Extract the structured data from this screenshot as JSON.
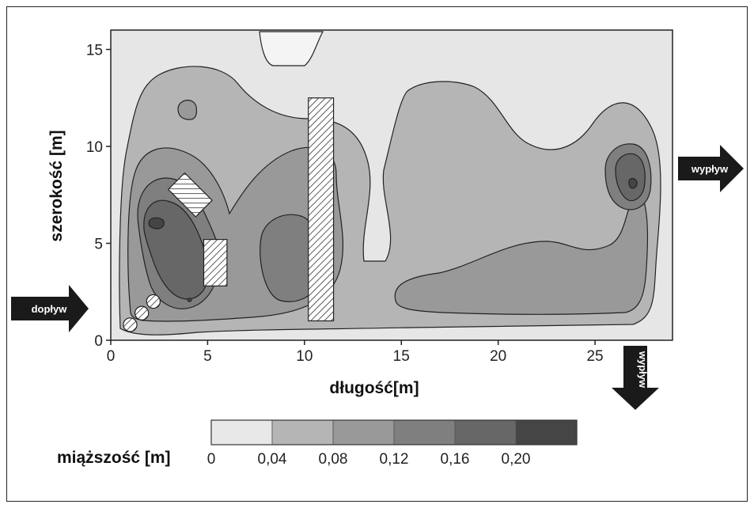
{
  "chart_data": {
    "type": "contour",
    "xlabel": "długość[m]",
    "ylabel": "szerokość [m]",
    "xlim": [
      0,
      29
    ],
    "ylim": [
      0,
      16
    ],
    "xticks": [
      0,
      5,
      10,
      15,
      20,
      25
    ],
    "yticks": [
      0,
      5,
      10,
      15
    ],
    "xtick_labels": [
      "0",
      "5",
      "10",
      "15",
      "20",
      "25"
    ],
    "ytick_labels": [
      "0",
      "5",
      "10",
      "15"
    ],
    "colorbar": {
      "title": "miąższość [m]",
      "levels": [
        0,
        0.04,
        0.08,
        0.12,
        0.16,
        0.2
      ],
      "labels": [
        "0",
        "0,04",
        "0,08",
        "0,12",
        "0,16",
        "0,20"
      ],
      "colors": [
        "#e8e8e8",
        "#b5b5b5",
        "#999999",
        "#7f7f7f",
        "#676767",
        "#454545"
      ]
    },
    "annotations": {
      "inflow": "dopływ",
      "outflow_right": "wypływ",
      "outflow_bottom": "wypływ"
    },
    "obstacles": [
      {
        "type": "rect",
        "x": [
          10.2,
          11.5
        ],
        "y": [
          1.0,
          12.5
        ]
      },
      {
        "type": "rect",
        "x": [
          4.8,
          6.0
        ],
        "y": [
          2.8,
          5.2
        ]
      },
      {
        "type": "rotated-rect",
        "center": [
          4.1,
          7.5
        ],
        "width": 2.0,
        "height": 1.2,
        "angle_deg": 45
      },
      {
        "type": "circle",
        "center": [
          1.0,
          0.8
        ],
        "r": 0.35
      },
      {
        "type": "circle",
        "center": [
          1.6,
          1.4
        ],
        "r": 0.35
      },
      {
        "type": "circle",
        "center": [
          2.2,
          2.0
        ],
        "r": 0.35
      }
    ],
    "grid": false,
    "legend_placement": "bottom"
  }
}
